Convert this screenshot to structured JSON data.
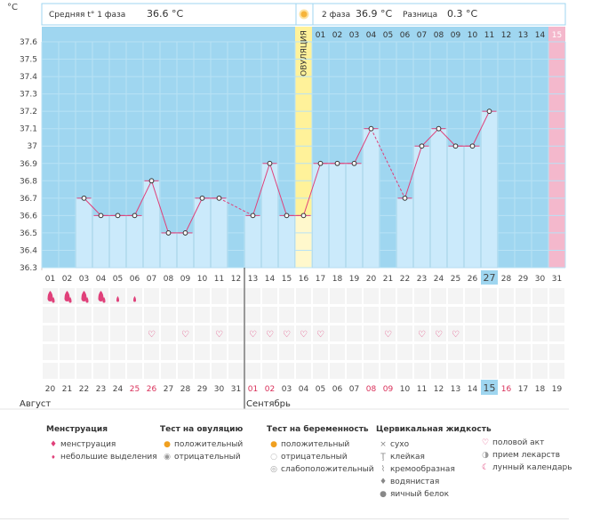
{
  "header": {
    "unit_label": "°C",
    "phase1_label": "Средняя t° 1 фаза",
    "phase1_value": "36.6 °C",
    "phase2_label": "2 фаза",
    "phase2_value": "36.9 °C",
    "diff_label": "Разница",
    "diff_value": "0.3 °C"
  },
  "ovulation_label": "ОВУЛЯЦИЯ",
  "months": {
    "first": "Август",
    "second": "Сентябрь"
  },
  "colors": {
    "plot_bg": "#9fd6f0",
    "bar_fill": "#cbeafb",
    "line": "#e0407a",
    "ovulation": "#fff29a",
    "menses_day": "#f4b8cc",
    "today": "#9fd6f0",
    "red_text": "#d9305a"
  },
  "chart_data": {
    "type": "line",
    "title": "",
    "ylabel": "°C",
    "ylim": [
      36.3,
      37.6
    ],
    "y_ticks": [
      "37.6",
      "37.5",
      "37.4",
      "37.3",
      "37.2",
      "37.1",
      "37",
      "36.9",
      "36.8",
      "36.7",
      "36.6",
      "36.5",
      "36.4",
      "36.3"
    ],
    "cycle_days": [
      "01",
      "02",
      "03",
      "04",
      "05",
      "06",
      "07",
      "08",
      "09",
      "10",
      "11",
      "12",
      "13",
      "14",
      "15",
      "16",
      "17",
      "18",
      "19",
      "20",
      "21",
      "22",
      "23",
      "24",
      "25",
      "26",
      "27",
      "28",
      "29",
      "30",
      "31"
    ],
    "dates": [
      "20",
      "21",
      "22",
      "23",
      "24",
      "25",
      "26",
      "27",
      "28",
      "29",
      "30",
      "31",
      "01",
      "02",
      "03",
      "04",
      "05",
      "06",
      "07",
      "08",
      "09",
      "10",
      "11",
      "12",
      "13",
      "14",
      "15",
      "16",
      "17",
      "18",
      "19"
    ],
    "phase2_days": [
      "01",
      "02",
      "03",
      "04",
      "05",
      "06",
      "07",
      "08",
      "09",
      "10",
      "11",
      "12",
      "13",
      "14",
      "15"
    ],
    "temperatures": [
      null,
      null,
      36.7,
      36.6,
      36.6,
      36.6,
      36.8,
      36.5,
      36.5,
      36.7,
      36.7,
      null,
      36.6,
      36.9,
      36.6,
      36.6,
      36.9,
      36.9,
      36.9,
      37.1,
      null,
      36.7,
      37.0,
      37.1,
      37.0,
      37.0,
      37.2,
      null,
      null,
      null,
      null
    ],
    "ovulation_day": 16,
    "today_cycle_day": 27,
    "today_phase2_day": "11",
    "menses_day": 31,
    "next_phase_label": "15",
    "menstruation": {
      "heavy": [
        1,
        2,
        3,
        4
      ],
      "light": [
        5,
        6
      ]
    },
    "intercourse_days": [
      7,
      9,
      11,
      13,
      14,
      15,
      16,
      17,
      21,
      23,
      24,
      25
    ],
    "red_dates": [
      6,
      7,
      13,
      14,
      20,
      21,
      28
    ],
    "today_date_index": 27
  },
  "legend": {
    "menses": {
      "title": "Менструация",
      "items": [
        "менструация",
        "небольшие выделения"
      ]
    },
    "ovulation_test": {
      "title": "Тест на овуляцию",
      "items": [
        "положительный",
        "отрицательный"
      ]
    },
    "pregnancy_test": {
      "title": "Тест на беременность",
      "items": [
        "положительный",
        "отрицательный",
        "слабоположительный"
      ]
    },
    "cervical": {
      "title": "Цервикальная жидкость",
      "items": [
        "сухо",
        "клейкая",
        "кремообразная",
        "водянистая",
        "яичный белок"
      ]
    },
    "other": {
      "items": [
        "половой акт",
        "прием лекарств",
        "лунный календарь"
      ]
    }
  }
}
